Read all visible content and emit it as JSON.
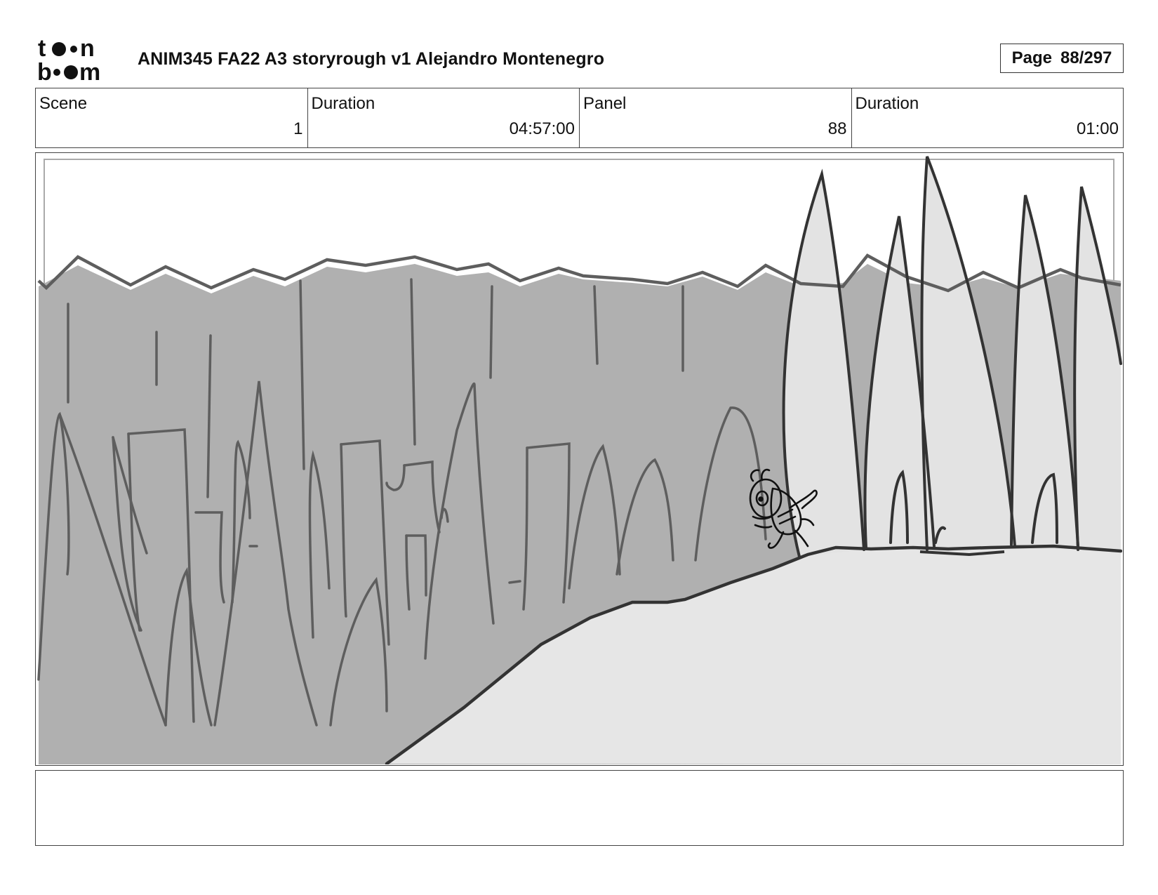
{
  "header": {
    "logo_text_top": "toon",
    "logo_text_bottom": "boom",
    "title": "ANIM345  FA22  A3 storyrough v1 Alejandro Montenegro",
    "page_label": "Page",
    "page_number": "88/297"
  },
  "info": {
    "scene_label": "Scene",
    "scene_value": "1",
    "scene_duration_label": "Duration",
    "scene_duration_value": "04:57:00",
    "panel_label": "Panel",
    "panel_value": "88",
    "panel_duration_label": "Duration",
    "panel_duration_value": "01:00"
  },
  "panel": {
    "colors": {
      "forest": "#b0b0b0",
      "ground": "#e6e6e6",
      "pines": "#e3e3e3",
      "line": "#5e5e5e",
      "dark_line": "#333333"
    }
  },
  "notes": {
    "text": ""
  }
}
